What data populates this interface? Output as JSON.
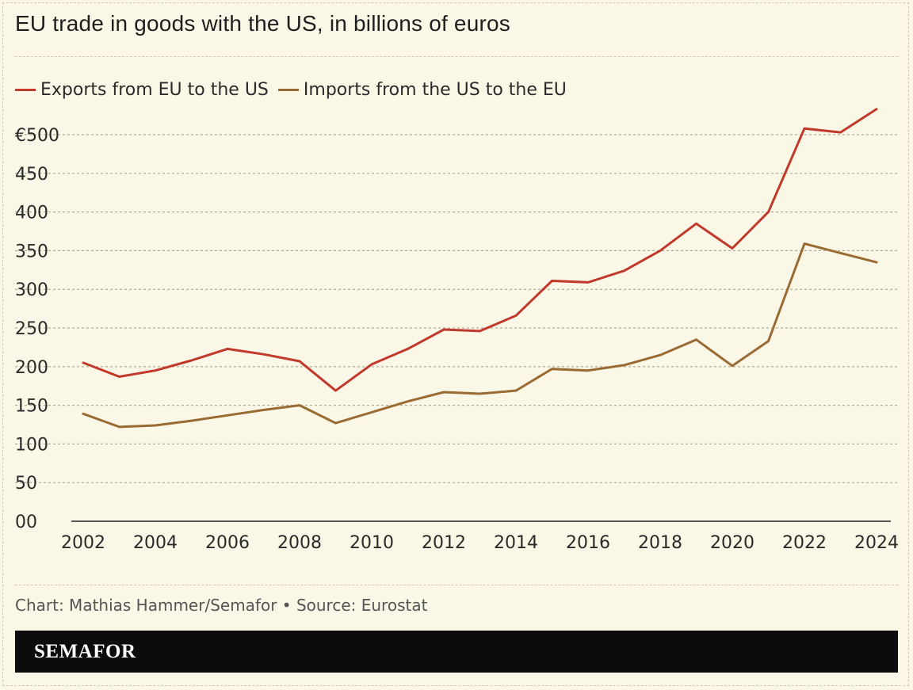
{
  "title": "EU trade in goods with the US, in billions of euros",
  "credit": "Chart: Mathias Hammer/Semafor • Source: Eurostat",
  "brand": "SEMAFOR",
  "colors": {
    "background": "#fbf7e6",
    "exports": "#c0392b",
    "imports": "#9a6a33",
    "brandbar": "#0c0c0c"
  },
  "legend": [
    {
      "label": "Exports from EU to the US",
      "color": "#c0392b"
    },
    {
      "label": "Imports from the US to the EU",
      "color": "#9a6a33"
    }
  ],
  "chart_data": {
    "type": "line",
    "title": "EU trade in goods with the US, in billions of euros",
    "xlabel": "",
    "ylabel": "",
    "x": [
      2002,
      2003,
      2004,
      2005,
      2006,
      2007,
      2008,
      2009,
      2010,
      2011,
      2012,
      2013,
      2014,
      2015,
      2016,
      2017,
      2018,
      2019,
      2020,
      2021,
      2022,
      2023,
      2024
    ],
    "xlim": [
      2002,
      2024
    ],
    "ylim": [
      0,
      540
    ],
    "grid": true,
    "legend_position": "top-left",
    "x_ticks": [
      "2002",
      "2004",
      "2006",
      "2008",
      "2010",
      "2012",
      "2014",
      "2016",
      "2018",
      "2020",
      "2022",
      "2024"
    ],
    "x_tick_values": [
      2002,
      2004,
      2006,
      2008,
      2010,
      2012,
      2014,
      2016,
      2018,
      2020,
      2022,
      2024
    ],
    "y_ticks": [
      "00",
      "50",
      "100",
      "150",
      "200",
      "250",
      "300",
      "350",
      "400",
      "450",
      "€500"
    ],
    "y_tick_values": [
      0,
      50,
      100,
      150,
      200,
      250,
      300,
      350,
      400,
      450,
      500
    ],
    "series": [
      {
        "name": "Exports from EU to the US",
        "color": "#c0392b",
        "values": [
          205,
          187,
          195,
          208,
          223,
          216,
          207,
          169,
          203,
          223,
          248,
          246,
          266,
          311,
          309,
          324,
          350,
          385,
          353,
          400,
          508,
          503,
          533
        ]
      },
      {
        "name": "Imports from the US to the EU",
        "color": "#9a6a33",
        "values": [
          139,
          122,
          124,
          130,
          137,
          144,
          150,
          127,
          141,
          155,
          167,
          165,
          169,
          197,
          195,
          202,
          215,
          235,
          201,
          233,
          359,
          347,
          335
        ]
      }
    ]
  }
}
